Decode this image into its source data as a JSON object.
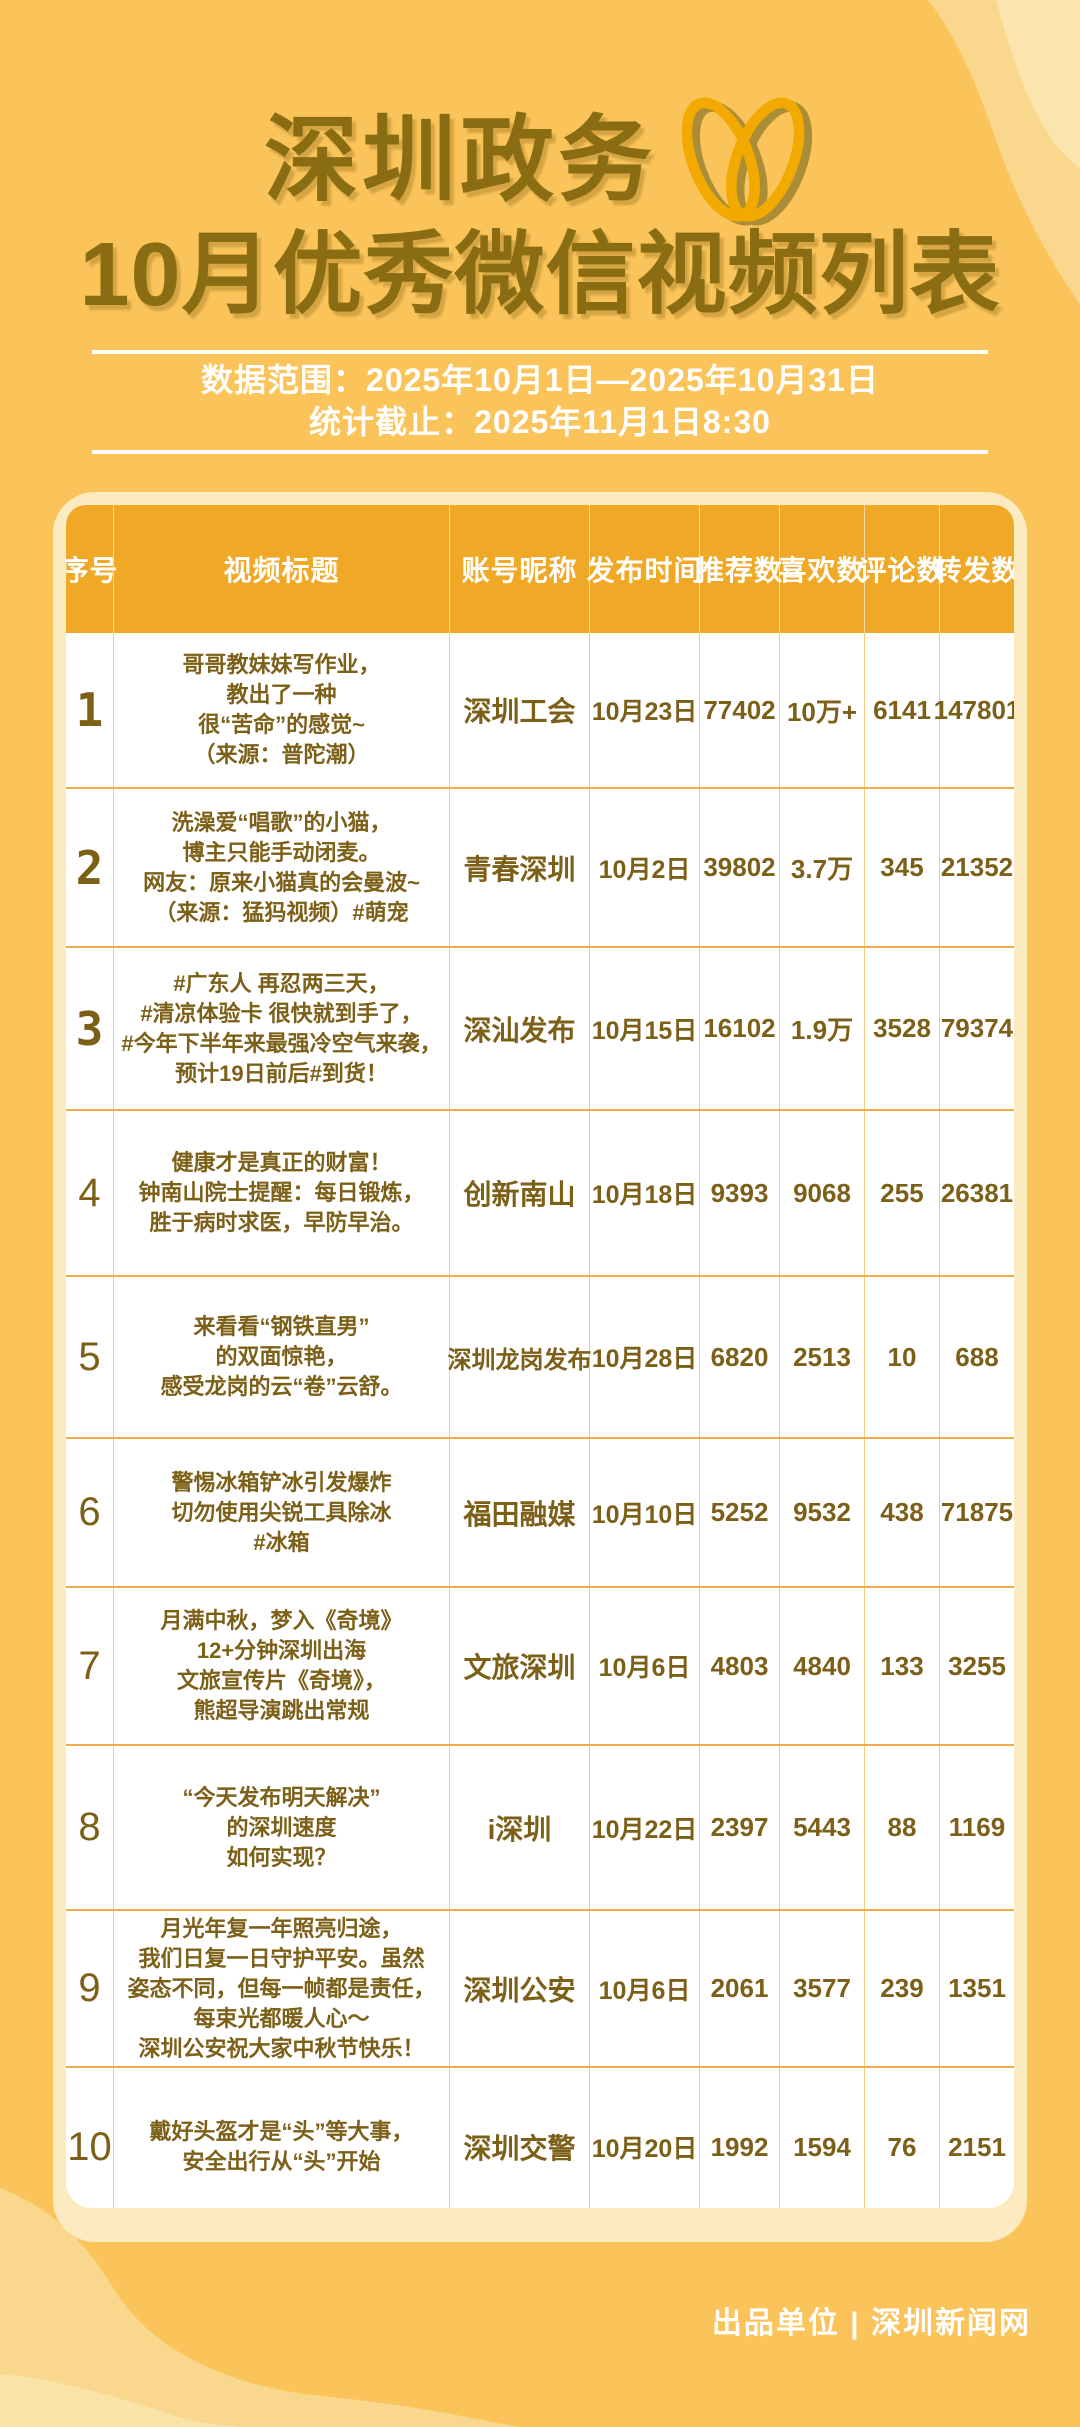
{
  "header": {
    "title_line1": "深圳政务",
    "title_line2": "10月优秀微信视频列表",
    "logo": "wechat-channels-icon"
  },
  "info": {
    "data_range": "数据范围：2025年10月1日—2025年10月31日",
    "stats_deadline": "统计截止：2025年11月1日8:30"
  },
  "table": {
    "columns": [
      "序号",
      "视频标题",
      "账号昵称",
      "发布时间",
      "推荐数",
      "喜欢数",
      "评论数",
      "转发数"
    ],
    "rows": [
      {
        "no": "1",
        "title": "哥哥教妹妹写作业，\n教出了一种\n很“苦命”的感觉~\n（来源：普陀潮）",
        "account": "深圳工会",
        "date": "10月23日",
        "recommends": "77402",
        "likes": "10万+",
        "comments": "6141",
        "shares": "147801"
      },
      {
        "no": "2",
        "title": "洗澡爱“唱歌”的小猫，\n博主只能手动闭麦。\n网友：原来小猫真的会曼波~\n（来源：猛犸视频）#萌宠",
        "account": "青春深圳",
        "date": "10月2日",
        "recommends": "39802",
        "likes": "3.7万",
        "comments": "345",
        "shares": "21352"
      },
      {
        "no": "3",
        "title": "#广东人 再忍两三天，\n#清凉体验卡 很快就到手了，\n#今年下半年来最强冷空气来袭，\n预计19日前后#到货！",
        "account": "深汕发布",
        "date": "10月15日",
        "recommends": "16102",
        "likes": "1.9万",
        "comments": "3528",
        "shares": "79374"
      },
      {
        "no": "4",
        "title": "健康才是真正的财富！\n钟南山院士提醒：每日锻炼，\n胜于病时求医，早防早治。",
        "account": "创新南山",
        "date": "10月18日",
        "recommends": "9393",
        "likes": "9068",
        "comments": "255",
        "shares": "26381"
      },
      {
        "no": "5",
        "title": "来看看“钢铁直男”\n的双面惊艳，\n感受龙岗的云“卷”云舒。",
        "account": "深圳龙岗发布",
        "date": "10月28日",
        "recommends": "6820",
        "likes": "2513",
        "comments": "10",
        "shares": "688"
      },
      {
        "no": "6",
        "title": "警惕冰箱铲冰引发爆炸\n切勿使用尖锐工具除冰\n#冰箱",
        "account": "福田融媒",
        "date": "10月10日",
        "recommends": "5252",
        "likes": "9532",
        "comments": "438",
        "shares": "71875"
      },
      {
        "no": "7",
        "title": "月满中秋，梦入《奇境》\n12+分钟深圳出海\n文旅宣传片《奇境》，\n熊超导演跳出常规",
        "account": "文旅深圳",
        "date": "10月6日",
        "recommends": "4803",
        "likes": "4840",
        "comments": "133",
        "shares": "3255"
      },
      {
        "no": "8",
        "title": "“今天发布明天解决”\n的深圳速度\n如何实现？",
        "account": "i深圳",
        "date": "10月22日",
        "recommends": "2397",
        "likes": "5443",
        "comments": "88",
        "shares": "1169"
      },
      {
        "no": "9",
        "title": "月光年复一年照亮归途，\n我们日复一日守护平安。虽然\n姿态不同，但每一帧都是责任，\n每束光都暖人心～\n深圳公安祝大家中秋节快乐！",
        "account": "深圳公安",
        "date": "10月6日",
        "recommends": "2061",
        "likes": "3577",
        "comments": "239",
        "shares": "1351"
      },
      {
        "no": "10",
        "title": "戴好头盔才是“头”等大事，\n安全出行从“头”开始",
        "account": "深圳交警",
        "date": "10月20日",
        "recommends": "1992",
        "likes": "1594",
        "comments": "76",
        "shares": "2151"
      }
    ]
  },
  "footer": {
    "credit": "出品单位 | 深圳新闻网"
  },
  "colors": {
    "background": "#FBC45B",
    "wave_mid": "#F9D78C",
    "wave_light": "#FBE5AF",
    "card": "#FCEBC1",
    "header_band": "#F0A827",
    "divider_vertical": "#F6C97E",
    "divider_horizontal": "#F3A94E",
    "body_text": "#7D6018",
    "title_text": "#8A6D12",
    "rank_accent": "#F0A50A",
    "logo_gold": "#F2A900",
    "info_text": "#FFFFFF"
  }
}
